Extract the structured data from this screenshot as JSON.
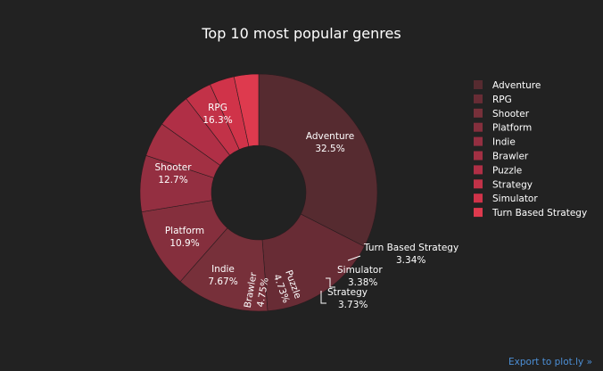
{
  "chart_data": {
    "type": "pie",
    "hole": true,
    "title": "Top 10 most popular genres",
    "categories": [
      "Adventure",
      "RPG",
      "Shooter",
      "Platform",
      "Indie",
      "Brawler",
      "Puzzle",
      "Strategy",
      "Simulator",
      "Turn Based Strategy"
    ],
    "values": [
      32.5,
      16.3,
      12.7,
      10.9,
      7.67,
      4.75,
      4.73,
      3.73,
      3.38,
      3.34
    ],
    "value_labels": [
      "32.5%",
      "16.3%",
      "12.7%",
      "10.9%",
      "7.67%",
      "4.75%",
      "4.73%",
      "3.73%",
      "3.38%",
      "3.34%"
    ],
    "colors": [
      "#562b30",
      "#682c35",
      "#77303a",
      "#852f3d",
      "#942f41",
      "#a23043",
      "#b02f46",
      "#c23248",
      "#d03349",
      "#de3a4e"
    ],
    "legend": {
      "position": "right",
      "entries": [
        "Adventure",
        "RPG",
        "Shooter",
        "Platform",
        "Indie",
        "Brawler",
        "Puzzle",
        "Strategy",
        "Simulator",
        "Turn Based Strategy"
      ]
    }
  },
  "footer": {
    "export_label": "Export to plot.ly »"
  }
}
